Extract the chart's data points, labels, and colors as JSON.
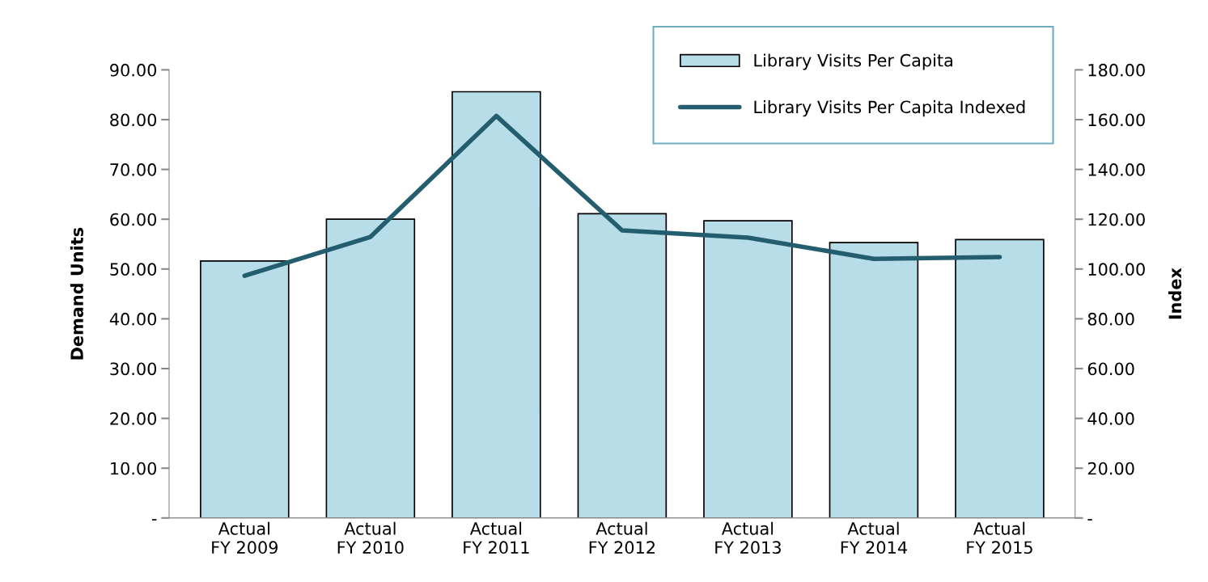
{
  "chart_data": {
    "type": "bar",
    "ylabel": "Demand Units",
    "y2label": "Index",
    "categories": [
      "Actual\nFY 2009",
      "Actual\nFY 2010",
      "Actual\nFY 2011",
      "Actual\nFY 2012",
      "Actual\nFY 2013",
      "Actual\nFY 2014",
      "Actual\nFY 2015"
    ],
    "series": [
      {
        "name": "Library Visits Per Capita",
        "color": "#b7dde8",
        "values": [
          51.6,
          60.0,
          85.6,
          61.1,
          59.7,
          55.3,
          55.9
        ]
      },
      {
        "name": "Library Visits Per Capita Indexed",
        "type": "line",
        "axis": "y2",
        "color": "#245e6e",
        "marker": "none",
        "values": [
          97.3,
          112.9,
          161.5,
          115.5,
          112.6,
          104.1,
          104.8
        ]
      }
    ],
    "ylim": [
      0,
      90
    ],
    "yticks": [
      {
        "value": 0,
        "label": "-"
      },
      {
        "value": 10,
        "label": "10.00"
      },
      {
        "value": 20,
        "label": "20.00"
      },
      {
        "value": 30,
        "label": "30.00"
      },
      {
        "value": 40,
        "label": "40.00"
      },
      {
        "value": 50,
        "label": "50.00"
      },
      {
        "value": 60,
        "label": "60.00"
      },
      {
        "value": 70,
        "label": "70.00"
      },
      {
        "value": 80,
        "label": "80.00"
      },
      {
        "value": 90,
        "label": "90.00"
      }
    ],
    "y2lim": [
      0,
      180
    ],
    "y2ticks": [
      {
        "value": 0,
        "label": "-"
      },
      {
        "value": 20,
        "label": "20.00"
      },
      {
        "value": 40,
        "label": "40.00"
      },
      {
        "value": 60,
        "label": "60.00"
      },
      {
        "value": 80,
        "label": "80.00"
      },
      {
        "value": 100,
        "label": "100.00"
      },
      {
        "value": 120,
        "label": "120.00"
      },
      {
        "value": 140,
        "label": "140.00"
      },
      {
        "value": 160,
        "label": "160.00"
      },
      {
        "value": 180,
        "label": "180.00"
      }
    ],
    "grid": false,
    "legend": "top right"
  }
}
